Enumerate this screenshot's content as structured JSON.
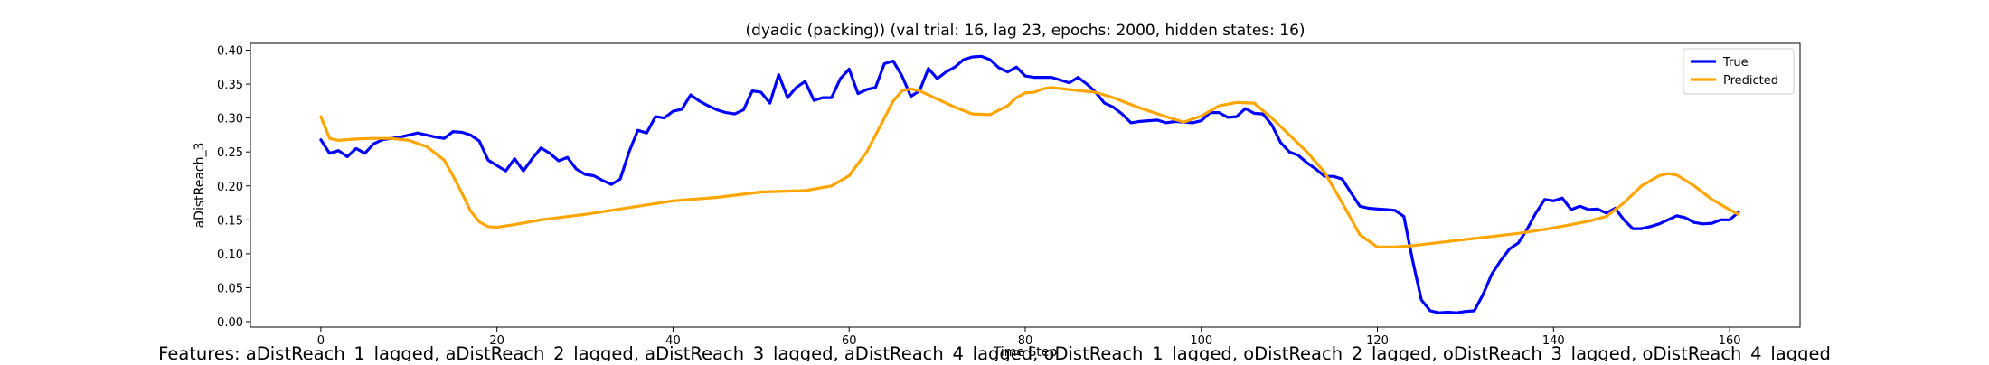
{
  "chart_data": {
    "type": "line",
    "title": "(dyadic (packing)) (val trial: 16, lag 23, epochs: 2000, hidden states: 16)",
    "xlabel": "Time Step",
    "ylabel": "aDistReach_3",
    "xlim": [
      -8,
      168
    ],
    "ylim": [
      -0.008,
      0.41
    ],
    "xticks": [
      0,
      20,
      40,
      60,
      80,
      100,
      120,
      140,
      160
    ],
    "yticks": [
      0.0,
      0.05,
      0.1,
      0.15,
      0.2,
      0.25,
      0.3,
      0.35,
      0.4
    ],
    "grid": false,
    "legend": "top-right",
    "footer": "Features: aDistReach_1_lagged, aDistReach_2_lagged, aDistReach_3_lagged, aDistReach_4_lagged, oDistReach_1_lagged, oDistReach_2_lagged, oDistReach_3_lagged, oDistReach_4_lagged",
    "series": [
      {
        "name": "True",
        "color": "#0000ff",
        "keypoints": [
          [
            0,
            0.268
          ],
          [
            1,
            0.248
          ],
          [
            2,
            0.252
          ],
          [
            3,
            0.243
          ],
          [
            4,
            0.255
          ],
          [
            5,
            0.248
          ],
          [
            6,
            0.262
          ],
          [
            7,
            0.268
          ],
          [
            8,
            0.27
          ],
          [
            9,
            0.272
          ],
          [
            10,
            0.275
          ],
          [
            11,
            0.278
          ],
          [
            12,
            0.275
          ],
          [
            13,
            0.272
          ],
          [
            14,
            0.27
          ],
          [
            15,
            0.28
          ],
          [
            16,
            0.279
          ],
          [
            17,
            0.275
          ],
          [
            18,
            0.266
          ],
          [
            19,
            0.238
          ],
          [
            20,
            0.23
          ],
          [
            21,
            0.222
          ],
          [
            22,
            0.24
          ],
          [
            23,
            0.222
          ],
          [
            24,
            0.24
          ],
          [
            25,
            0.256
          ],
          [
            26,
            0.248
          ],
          [
            27,
            0.237
          ],
          [
            28,
            0.242
          ],
          [
            29,
            0.225
          ],
          [
            30,
            0.217
          ],
          [
            31,
            0.215
          ],
          [
            32,
            0.208
          ],
          [
            33,
            0.202
          ],
          [
            34,
            0.21
          ],
          [
            35,
            0.25
          ],
          [
            36,
            0.282
          ],
          [
            37,
            0.278
          ],
          [
            38,
            0.302
          ],
          [
            39,
            0.3
          ],
          [
            40,
            0.31
          ],
          [
            41,
            0.313
          ],
          [
            42,
            0.334
          ],
          [
            43,
            0.325
          ],
          [
            44,
            0.318
          ],
          [
            45,
            0.312
          ],
          [
            46,
            0.308
          ],
          [
            47,
            0.306
          ],
          [
            48,
            0.312
          ],
          [
            49,
            0.34
          ],
          [
            50,
            0.338
          ],
          [
            51,
            0.322
          ],
          [
            52,
            0.364
          ],
          [
            53,
            0.33
          ],
          [
            54,
            0.345
          ],
          [
            55,
            0.354
          ],
          [
            56,
            0.326
          ],
          [
            57,
            0.33
          ],
          [
            58,
            0.33
          ],
          [
            59,
            0.358
          ],
          [
            60,
            0.372
          ],
          [
            61,
            0.336
          ],
          [
            62,
            0.342
          ],
          [
            63,
            0.345
          ],
          [
            64,
            0.38
          ],
          [
            65,
            0.384
          ],
          [
            66,
            0.362
          ],
          [
            67,
            0.332
          ],
          [
            68,
            0.34
          ],
          [
            69,
            0.373
          ],
          [
            70,
            0.358
          ],
          [
            71,
            0.368
          ],
          [
            72,
            0.375
          ],
          [
            73,
            0.386
          ],
          [
            74,
            0.39
          ],
          [
            75,
            0.391
          ],
          [
            76,
            0.386
          ],
          [
            77,
            0.374
          ],
          [
            78,
            0.368
          ],
          [
            79,
            0.375
          ],
          [
            80,
            0.362
          ],
          [
            81,
            0.36
          ],
          [
            82,
            0.36
          ],
          [
            83,
            0.36
          ],
          [
            84,
            0.356
          ],
          [
            85,
            0.352
          ],
          [
            86,
            0.36
          ],
          [
            87,
            0.35
          ],
          [
            88,
            0.338
          ],
          [
            89,
            0.322
          ],
          [
            90,
            0.316
          ],
          [
            91,
            0.306
          ],
          [
            92,
            0.293
          ],
          [
            93,
            0.295
          ],
          [
            94,
            0.296
          ],
          [
            95,
            0.297
          ],
          [
            96,
            0.293
          ],
          [
            97,
            0.295
          ],
          [
            98,
            0.294
          ],
          [
            99,
            0.293
          ],
          [
            100,
            0.296
          ],
          [
            101,
            0.308
          ],
          [
            102,
            0.308
          ],
          [
            103,
            0.301
          ],
          [
            104,
            0.302
          ],
          [
            105,
            0.314
          ],
          [
            106,
            0.307
          ],
          [
            107,
            0.306
          ],
          [
            108,
            0.29
          ],
          [
            109,
            0.264
          ],
          [
            110,
            0.25
          ],
          [
            111,
            0.245
          ],
          [
            112,
            0.234
          ],
          [
            113,
            0.225
          ],
          [
            114,
            0.214
          ],
          [
            115,
            0.214
          ],
          [
            116,
            0.21
          ],
          [
            117,
            0.19
          ],
          [
            118,
            0.17
          ],
          [
            119,
            0.167
          ],
          [
            120,
            0.166
          ],
          [
            121,
            0.165
          ],
          [
            122,
            0.164
          ],
          [
            123,
            0.155
          ],
          [
            124,
            0.09
          ],
          [
            125,
            0.032
          ],
          [
            126,
            0.016
          ],
          [
            127,
            0.013
          ],
          [
            128,
            0.014
          ],
          [
            129,
            0.013
          ],
          [
            130,
            0.015
          ],
          [
            131,
            0.016
          ],
          [
            132,
            0.04
          ],
          [
            133,
            0.07
          ],
          [
            134,
            0.09
          ],
          [
            135,
            0.107
          ],
          [
            136,
            0.116
          ],
          [
            137,
            0.136
          ],
          [
            138,
            0.16
          ],
          [
            139,
            0.18
          ],
          [
            140,
            0.178
          ],
          [
            141,
            0.182
          ],
          [
            142,
            0.165
          ],
          [
            143,
            0.17
          ],
          [
            144,
            0.165
          ],
          [
            145,
            0.166
          ],
          [
            146,
            0.16
          ],
          [
            147,
            0.167
          ],
          [
            148,
            0.15
          ],
          [
            149,
            0.137
          ],
          [
            150,
            0.137
          ],
          [
            151,
            0.14
          ],
          [
            152,
            0.144
          ],
          [
            153,
            0.15
          ],
          [
            154,
            0.156
          ],
          [
            155,
            0.153
          ],
          [
            156,
            0.146
          ],
          [
            157,
            0.144
          ],
          [
            158,
            0.145
          ],
          [
            159,
            0.15
          ],
          [
            160,
            0.15
          ],
          [
            161,
            0.161
          ]
        ]
      },
      {
        "name": "Predicted",
        "color": "#ffa500",
        "keypoints": [
          [
            0,
            0.302
          ],
          [
            1,
            0.27
          ],
          [
            2,
            0.267
          ],
          [
            4,
            0.269
          ],
          [
            6,
            0.27
          ],
          [
            8,
            0.27
          ],
          [
            10,
            0.267
          ],
          [
            12,
            0.258
          ],
          [
            14,
            0.238
          ],
          [
            15,
            0.215
          ],
          [
            16,
            0.19
          ],
          [
            17,
            0.163
          ],
          [
            18,
            0.147
          ],
          [
            19,
            0.14
          ],
          [
            20,
            0.139
          ],
          [
            22,
            0.143
          ],
          [
            25,
            0.15
          ],
          [
            30,
            0.158
          ],
          [
            35,
            0.168
          ],
          [
            40,
            0.178
          ],
          [
            45,
            0.183
          ],
          [
            50,
            0.191
          ],
          [
            55,
            0.193
          ],
          [
            58,
            0.2
          ],
          [
            60,
            0.215
          ],
          [
            62,
            0.25
          ],
          [
            64,
            0.3
          ],
          [
            65,
            0.325
          ],
          [
            66,
            0.34
          ],
          [
            67,
            0.343
          ],
          [
            68,
            0.34
          ],
          [
            70,
            0.328
          ],
          [
            72,
            0.316
          ],
          [
            74,
            0.306
          ],
          [
            76,
            0.305
          ],
          [
            78,
            0.318
          ],
          [
            79,
            0.33
          ],
          [
            80,
            0.337
          ],
          [
            81,
            0.338
          ],
          [
            82,
            0.343
          ],
          [
            83,
            0.345
          ],
          [
            85,
            0.342
          ],
          [
            88,
            0.338
          ],
          [
            90,
            0.33
          ],
          [
            93,
            0.315
          ],
          [
            96,
            0.302
          ],
          [
            98,
            0.294
          ],
          [
            100,
            0.303
          ],
          [
            102,
            0.318
          ],
          [
            104,
            0.323
          ],
          [
            106,
            0.322
          ],
          [
            108,
            0.3
          ],
          [
            110,
            0.275
          ],
          [
            112,
            0.25
          ],
          [
            114,
            0.22
          ],
          [
            116,
            0.175
          ],
          [
            118,
            0.128
          ],
          [
            120,
            0.11
          ],
          [
            122,
            0.11
          ],
          [
            124,
            0.112
          ],
          [
            128,
            0.118
          ],
          [
            132,
            0.124
          ],
          [
            136,
            0.13
          ],
          [
            140,
            0.138
          ],
          [
            144,
            0.148
          ],
          [
            146,
            0.155
          ],
          [
            148,
            0.175
          ],
          [
            150,
            0.2
          ],
          [
            152,
            0.215
          ],
          [
            153,
            0.218
          ],
          [
            154,
            0.216
          ],
          [
            156,
            0.2
          ],
          [
            158,
            0.18
          ],
          [
            160,
            0.165
          ],
          [
            161,
            0.158
          ]
        ]
      }
    ]
  }
}
